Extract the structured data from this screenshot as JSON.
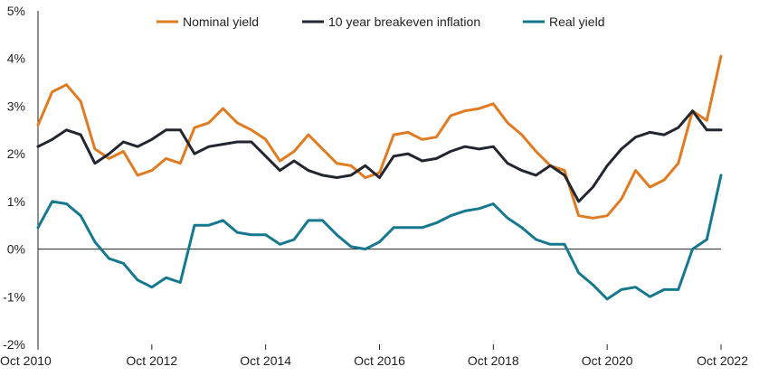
{
  "chart_data": {
    "type": "line",
    "title": "",
    "xlabel": "",
    "ylabel": "",
    "xlim": [
      "2010-10",
      "2022-10"
    ],
    "ylim": [
      -2,
      5
    ],
    "y_ticks": [
      {
        "value": 5,
        "label": "5%"
      },
      {
        "value": 4,
        "label": "4%"
      },
      {
        "value": 3,
        "label": "3%"
      },
      {
        "value": 2,
        "label": "2%"
      },
      {
        "value": 1,
        "label": "1%"
      },
      {
        "value": 0,
        "label": "0%"
      },
      {
        "value": -1,
        "label": "-1%"
      },
      {
        "value": -2,
        "label": "-2%"
      }
    ],
    "x_ticks": [
      {
        "value": "2010-10",
        "label": "Oct 2010"
      },
      {
        "value": "2012-10",
        "label": "Oct 2012"
      },
      {
        "value": "2014-10",
        "label": "Oct 2014"
      },
      {
        "value": "2016-10",
        "label": "Oct 2016"
      },
      {
        "value": "2018-10",
        "label": "Oct 2018"
      },
      {
        "value": "2020-10",
        "label": "Oct 2020"
      },
      {
        "value": "2022-10",
        "label": "Oct 2022"
      }
    ],
    "grid": false,
    "legend_position": "top",
    "x": [
      "2010-10",
      "2011-01",
      "2011-04",
      "2011-07",
      "2011-10",
      "2012-01",
      "2012-04",
      "2012-07",
      "2012-10",
      "2013-01",
      "2013-04",
      "2013-07",
      "2013-10",
      "2014-01",
      "2014-04",
      "2014-07",
      "2014-10",
      "2015-01",
      "2015-04",
      "2015-07",
      "2015-10",
      "2016-01",
      "2016-04",
      "2016-07",
      "2016-10",
      "2017-01",
      "2017-04",
      "2017-07",
      "2017-10",
      "2018-01",
      "2018-04",
      "2018-07",
      "2018-10",
      "2019-01",
      "2019-04",
      "2019-07",
      "2019-10",
      "2020-01",
      "2020-04",
      "2020-07",
      "2020-10",
      "2021-01",
      "2021-04",
      "2021-07",
      "2021-10",
      "2022-01",
      "2022-04",
      "2022-07",
      "2022-10"
    ],
    "series": [
      {
        "name": "Nominal yield",
        "color": "#E07B22",
        "values": [
          2.6,
          3.3,
          3.45,
          3.1,
          2.1,
          1.9,
          2.05,
          1.55,
          1.65,
          1.9,
          1.8,
          2.55,
          2.65,
          2.95,
          2.65,
          2.5,
          2.3,
          1.85,
          2.05,
          2.4,
          2.1,
          1.8,
          1.75,
          1.5,
          1.6,
          2.4,
          2.45,
          2.3,
          2.35,
          2.8,
          2.9,
          2.95,
          3.05,
          2.65,
          2.4,
          2.05,
          1.75,
          1.65,
          0.7,
          0.65,
          0.7,
          1.05,
          1.65,
          1.3,
          1.45,
          1.8,
          2.9,
          2.7,
          4.05
        ]
      },
      {
        "name": "10 year breakeven inflation",
        "color": "#222630",
        "values": [
          2.15,
          2.3,
          2.5,
          2.4,
          1.8,
          2.0,
          2.25,
          2.15,
          2.3,
          2.5,
          2.5,
          2.0,
          2.15,
          2.2,
          2.25,
          2.25,
          1.95,
          1.65,
          1.85,
          1.65,
          1.55,
          1.5,
          1.55,
          1.75,
          1.5,
          1.95,
          2.0,
          1.85,
          1.9,
          2.05,
          2.15,
          2.1,
          2.15,
          1.8,
          1.65,
          1.55,
          1.75,
          1.55,
          1.0,
          1.3,
          1.75,
          2.1,
          2.35,
          2.45,
          2.4,
          2.55,
          2.9,
          2.5,
          2.5
        ]
      },
      {
        "name": "Real yield",
        "color": "#16788F",
        "values": [
          0.45,
          1.0,
          0.95,
          0.7,
          0.15,
          -0.2,
          -0.3,
          -0.65,
          -0.8,
          -0.6,
          -0.7,
          0.5,
          0.5,
          0.6,
          0.35,
          0.3,
          0.3,
          0.1,
          0.2,
          0.6,
          0.6,
          0.3,
          0.05,
          0.0,
          0.15,
          0.45,
          0.45,
          0.45,
          0.55,
          0.7,
          0.8,
          0.85,
          0.95,
          0.65,
          0.45,
          0.2,
          0.1,
          0.1,
          -0.5,
          -0.75,
          -1.05,
          -0.85,
          -0.8,
          -1.0,
          -0.85,
          -0.85,
          0.0,
          0.2,
          1.55
        ]
      }
    ]
  }
}
